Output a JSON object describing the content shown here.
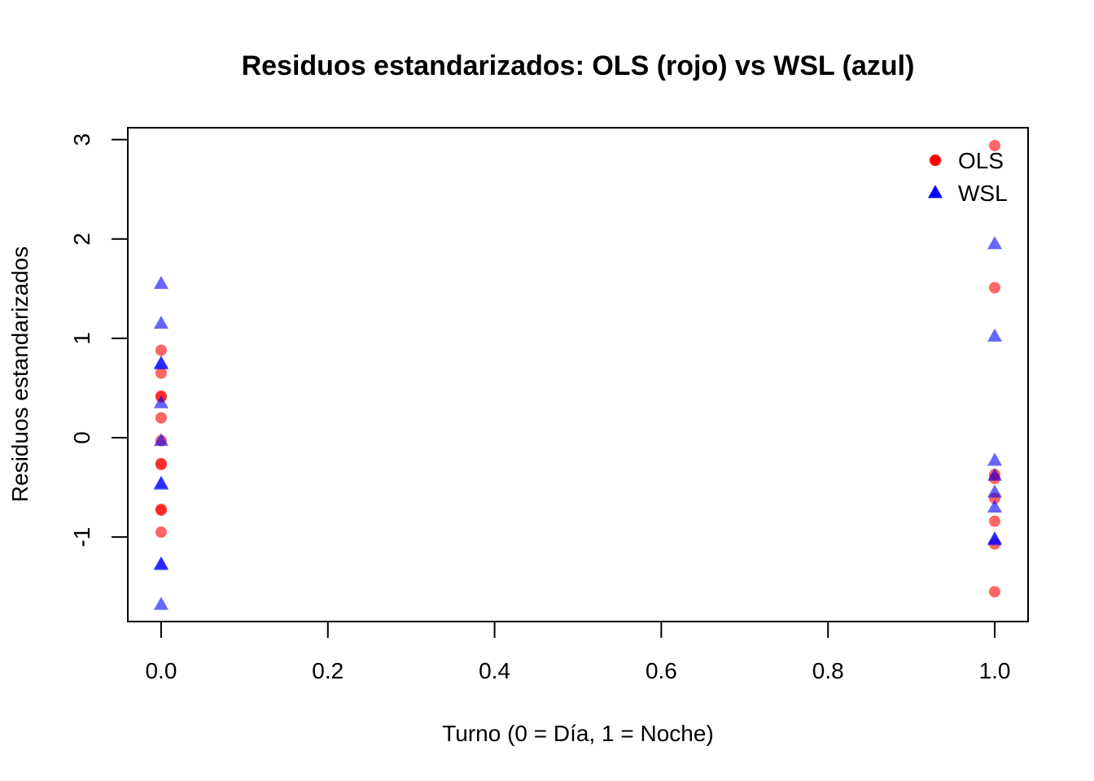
{
  "chart_data": {
    "type": "scatter",
    "title": "Residuos estandarizados: OLS (rojo) vs WSL (azul)",
    "xlabel": "Turno (0 = Día, 1 = Noche)",
    "ylabel": "Residuos estandarizados",
    "xlim": [
      -0.04,
      1.04
    ],
    "ylim": [
      -1.85,
      3.12
    ],
    "x_ticks": [
      0.0,
      0.2,
      0.4,
      0.6,
      0.8,
      1.0
    ],
    "x_tick_labels": [
      "0.0",
      "0.2",
      "0.4",
      "0.6",
      "0.8",
      "1.0"
    ],
    "y_ticks": [
      -1,
      0,
      1,
      2,
      3
    ],
    "y_tick_labels": [
      "-1",
      "0",
      "1",
      "2",
      "3"
    ],
    "grid": false,
    "legend_position": "top-right",
    "series": [
      {
        "name": "OLS",
        "marker": "circle",
        "color": "#ff0000",
        "x": [
          0,
          0,
          0,
          0,
          0,
          0,
          0,
          0,
          0,
          0,
          0,
          1,
          1,
          1,
          1,
          1,
          1,
          1,
          1
        ],
        "y": [
          0.88,
          0.65,
          0.42,
          0.41,
          0.2,
          -0.03,
          -0.26,
          -0.27,
          -0.72,
          -0.73,
          -0.95,
          2.94,
          1.51,
          -0.37,
          -0.41,
          -0.61,
          -0.84,
          -1.07,
          -1.55
        ]
      },
      {
        "name": "WSL",
        "marker": "triangle",
        "color": "#0000ff",
        "x": [
          0,
          0,
          0,
          0,
          0,
          0,
          0,
          0,
          0,
          0,
          0,
          1,
          1,
          1,
          1,
          1,
          1,
          1,
          1
        ],
        "y": [
          1.55,
          1.15,
          0.75,
          0.74,
          0.35,
          -0.03,
          -0.46,
          -0.47,
          -1.27,
          -1.28,
          -1.68,
          1.95,
          1.02,
          -0.23,
          -0.38,
          -0.55,
          -0.7,
          -1.02,
          -1.03
        ]
      }
    ]
  }
}
